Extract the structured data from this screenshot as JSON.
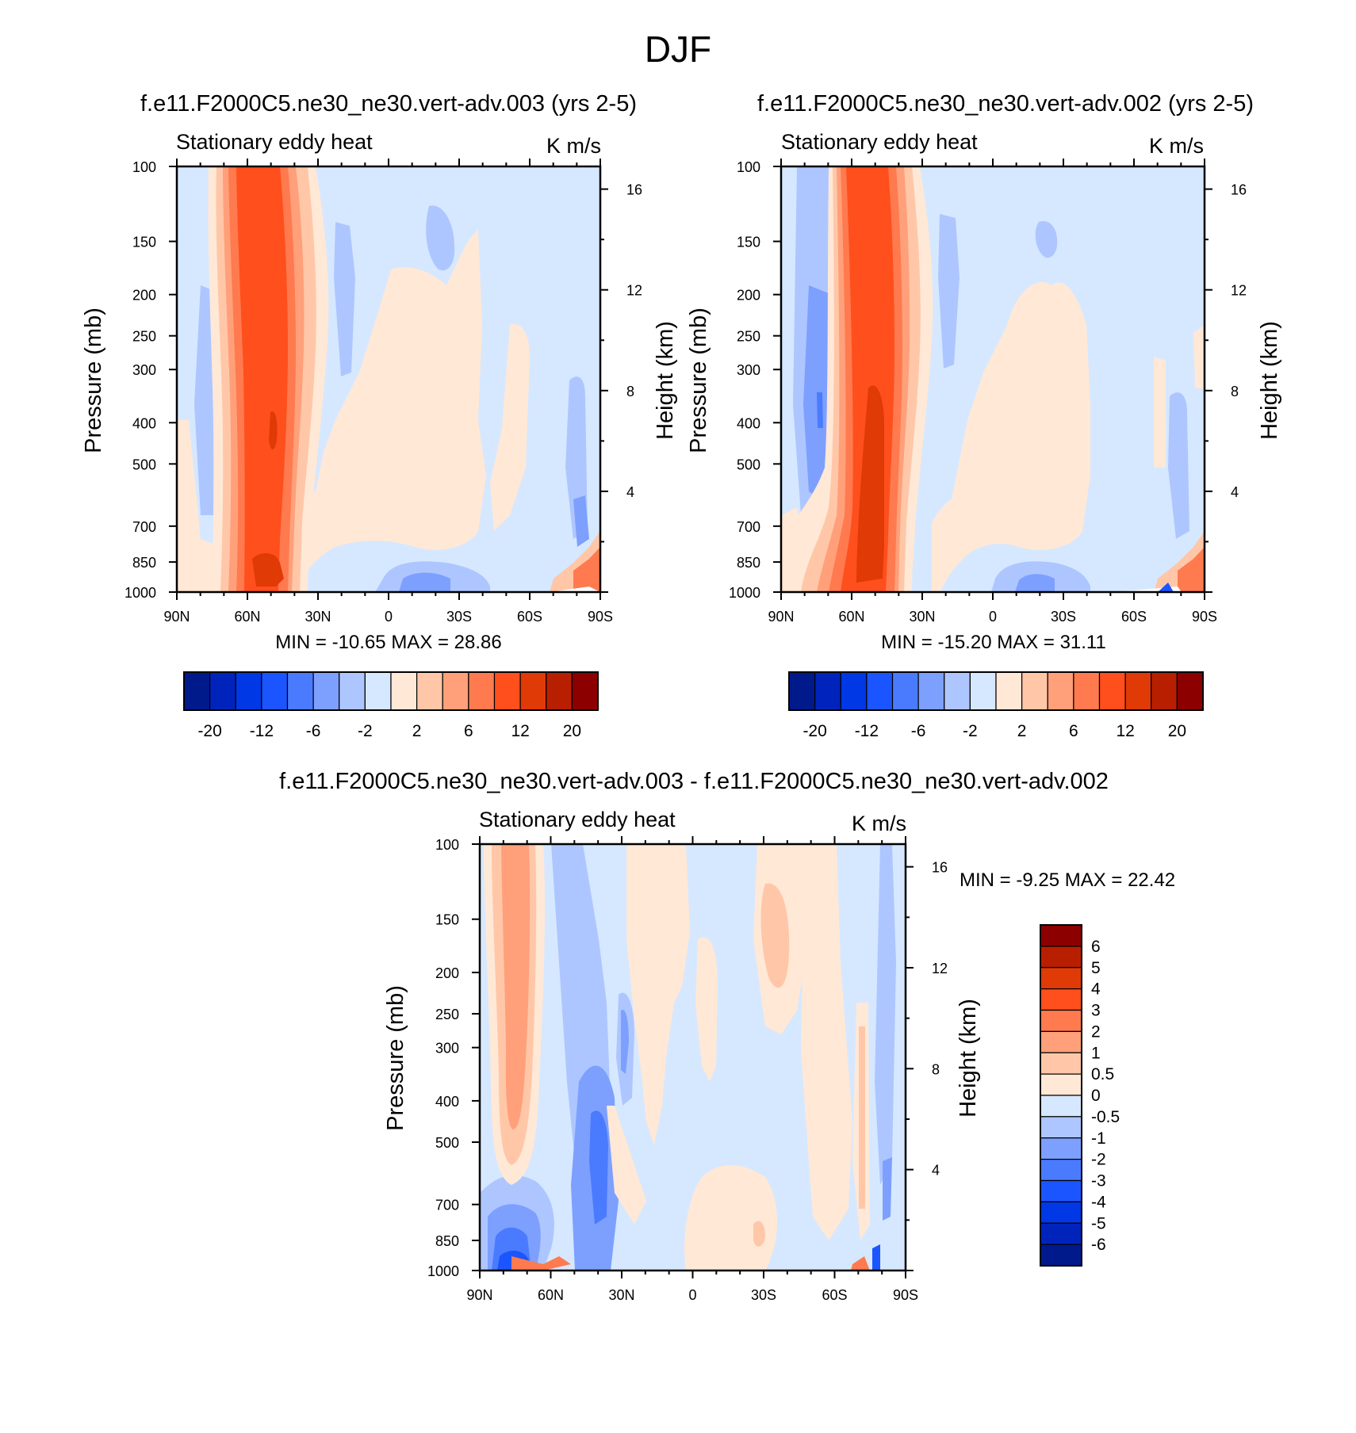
{
  "main_title": "DJF",
  "colors": {
    "levels_abs": [
      "#001a8c",
      "#0024bb",
      "#0038e6",
      "#1b55ff",
      "#4a7bff",
      "#7da0ff",
      "#aec6ff",
      "#d6e8ff",
      "#ffe8d6",
      "#ffc7a8",
      "#ffa07a",
      "#ff7a4f",
      "#ff4f1c",
      "#e03a06",
      "#b81f00",
      "#8c0000"
    ],
    "background_fill": "#d6e8ff"
  },
  "chart_data": [
    {
      "type": "heatmap",
      "id": "panel1",
      "title": "f.e11.F2000C5.ne30_ne30.vert-adv.003 (yrs 2-5)",
      "left_label": "Stationary eddy heat",
      "right_label": "K m/s",
      "xlabel": "",
      "ylabel": "Pressure (mb)",
      "y2label": "Height (km)",
      "x_ticks": [
        "90N",
        "60N",
        "30N",
        "0",
        "30S",
        "60S",
        "90S"
      ],
      "y_ticks": [
        "100",
        "150",
        "200",
        "250",
        "300",
        "400",
        "500",
        "700",
        "850",
        "1000"
      ],
      "y2_ticks": [
        "16",
        "12",
        "8",
        "4"
      ],
      "min_max": "MIN = -10.65  MAX =  28.86",
      "colorbar_labels": [
        "-20",
        "-12",
        "-6",
        "-2",
        "2",
        "6",
        "12",
        "20"
      ],
      "min": -10.65,
      "max": 28.86
    },
    {
      "type": "heatmap",
      "id": "panel2",
      "title": "f.e11.F2000C5.ne30_ne30.vert-adv.002 (yrs 2-5)",
      "left_label": "Stationary eddy heat",
      "right_label": "K m/s",
      "xlabel": "",
      "ylabel": "Pressure (mb)",
      "y2label": "Height (km)",
      "x_ticks": [
        "90N",
        "60N",
        "30N",
        "0",
        "30S",
        "60S",
        "90S"
      ],
      "y_ticks": [
        "100",
        "150",
        "200",
        "250",
        "300",
        "400",
        "500",
        "700",
        "850",
        "1000"
      ],
      "y2_ticks": [
        "16",
        "12",
        "8",
        "4"
      ],
      "min_max": "MIN = -15.20  MAX =  31.11",
      "colorbar_labels": [
        "-20",
        "-12",
        "-6",
        "-2",
        "2",
        "6",
        "12",
        "20"
      ],
      "min": -15.2,
      "max": 31.11
    },
    {
      "type": "heatmap",
      "id": "panel3",
      "title": "f.e11.F2000C5.ne30_ne30.vert-adv.003 - f.e11.F2000C5.ne30_ne30.vert-adv.002",
      "left_label": "Stationary eddy heat",
      "right_label": "K m/s",
      "xlabel": "",
      "ylabel": "Pressure (mb)",
      "y2label": "Height (km)",
      "x_ticks": [
        "90N",
        "60N",
        "30N",
        "0",
        "30S",
        "60S",
        "90S"
      ],
      "y_ticks": [
        "100",
        "150",
        "200",
        "250",
        "300",
        "400",
        "500",
        "700",
        "850",
        "1000"
      ],
      "y2_ticks": [
        "16",
        "12",
        "8",
        "4"
      ],
      "min_max": "MIN =  -9.25  MAX =  22.42",
      "colorbar_labels": [
        "6",
        "5",
        "4",
        "3",
        "2",
        "1",
        "0.5",
        "0",
        "-0.5",
        "-1",
        "-2",
        "-3",
        "-4",
        "-5",
        "-6"
      ],
      "min": -9.25,
      "max": 22.42
    }
  ]
}
